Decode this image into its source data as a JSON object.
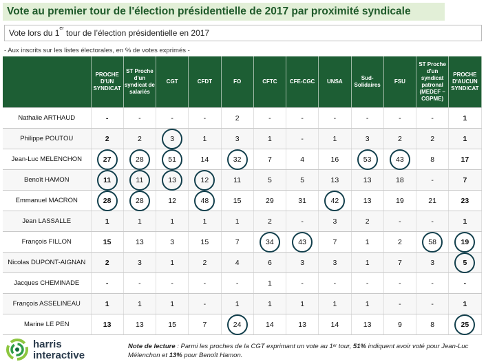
{
  "title": "Vote au premier tour de l'élection présidentielle de 2017 par proximité syndicale",
  "subtitle": {
    "pre": "Vote lors du 1",
    "sup": "er",
    "post": " tour de l’élection présidentielle en 2017"
  },
  "note_top": "- Aux inscrits sur les listes électorales, en % de votes exprimés -",
  "columns": [
    "PROCHE D'UN SYNDICAT",
    "ST Proche d'un syndicat de salariés",
    "CGT",
    "CFDT",
    "FO",
    "CFTC",
    "CFE-CGC",
    "UNSA",
    "Sud-Solidaires",
    "FSU",
    "ST Proche d'un syndicat patronal (MEDEF – CGPME)",
    "PROCHE D'AUCUN SYNDICAT"
  ],
  "rows": [
    {
      "name": "Nathalie ARTHAUD",
      "values": [
        "-",
        "-",
        "-",
        "-",
        "2",
        "-",
        "-",
        "-",
        "-",
        "-",
        "-",
        "1"
      ],
      "circled": []
    },
    {
      "name": "Philippe POUTOU",
      "values": [
        "2",
        "2",
        "3",
        "1",
        "3",
        "1",
        "-",
        "1",
        "3",
        "2",
        "2",
        "1"
      ],
      "circled": [
        2
      ]
    },
    {
      "name": "Jean-Luc MELENCHON",
      "values": [
        "27",
        "28",
        "51",
        "14",
        "32",
        "7",
        "4",
        "16",
        "53",
        "43",
        "8",
        "17"
      ],
      "circled": [
        0,
        1,
        2,
        4,
        8,
        9
      ]
    },
    {
      "name": "Benoît HAMON",
      "values": [
        "11",
        "11",
        "13",
        "12",
        "11",
        "5",
        "5",
        "13",
        "13",
        "18",
        "-",
        "7"
      ],
      "circled": [
        0,
        1,
        2,
        3
      ]
    },
    {
      "name": "Emmanuel MACRON",
      "values": [
        "28",
        "28",
        "12",
        "48",
        "15",
        "29",
        "31",
        "42",
        "13",
        "19",
        "21",
        "23"
      ],
      "circled": [
        0,
        1,
        3,
        7
      ]
    },
    {
      "name": "Jean LASSALLE",
      "values": [
        "1",
        "1",
        "1",
        "1",
        "1",
        "2",
        "-",
        "3",
        "2",
        "-",
        "-",
        "1"
      ],
      "circled": []
    },
    {
      "name": "François FILLON",
      "values": [
        "15",
        "13",
        "3",
        "15",
        "7",
        "34",
        "43",
        "7",
        "1",
        "2",
        "58",
        "19"
      ],
      "circled": [
        5,
        6,
        10,
        11
      ]
    },
    {
      "name": "Nicolas DUPONT-AIGNAN",
      "values": [
        "2",
        "3",
        "1",
        "2",
        "4",
        "6",
        "3",
        "3",
        "1",
        "7",
        "3",
        "5"
      ],
      "circled": [
        11
      ]
    },
    {
      "name": "Jacques CHEMINADE",
      "values": [
        "-",
        "-",
        "-",
        "-",
        "-",
        "1",
        "-",
        "-",
        "-",
        "-",
        "-",
        "-"
      ],
      "circled": []
    },
    {
      "name": "François ASSELINEAU",
      "values": [
        "1",
        "1",
        "1",
        "-",
        "1",
        "1",
        "1",
        "1",
        "1",
        "-",
        "-",
        "1"
      ],
      "circled": []
    },
    {
      "name": "Marine LE PEN",
      "values": [
        "13",
        "13",
        "15",
        "7",
        "24",
        "14",
        "13",
        "14",
        "13",
        "9",
        "8",
        "25"
      ],
      "circled": [
        4,
        11
      ]
    }
  ],
  "bold_columns": [
    0,
    11
  ],
  "logo": {
    "line1": "harris",
    "line2": "interactive"
  },
  "reading_note": {
    "label": "Note de lecture",
    "text1": " : Parmi les proches de la CGT exprimant un vote au 1",
    "sup": "er",
    "text2": " tour, ",
    "b1": "51%",
    "text3": " indiquent avoir voté pour Jean-Luc Mélenchon et ",
    "b2": "13%",
    "text4": " pour Benoît Hamon."
  }
}
